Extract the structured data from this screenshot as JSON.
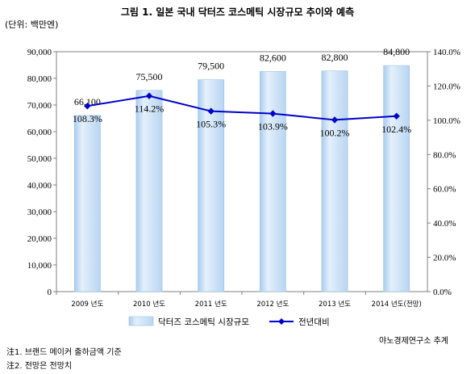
{
  "title": "그림 1. 일본 국내 닥터즈 코스메틱 시장규모 추이와 예측",
  "unit_label": "(단위: 백만엔)",
  "source": "야노경제연구소 추계",
  "notes": [
    "注1.  브랜드 메이커 출하금액 기준",
    "注2.  전망은 전망치"
  ],
  "chart_data": {
    "type": "bar",
    "categories": [
      "2009 년도",
      "2010 년도",
      "2011 년도",
      "2012 년도",
      "2013 년도",
      "2014 년도(전망)"
    ],
    "series": [
      {
        "name": "닥터즈 코스메틱 시장규모",
        "type": "bar",
        "axis": "left",
        "values": [
          66100,
          75500,
          79500,
          82600,
          82800,
          84800
        ],
        "labels": [
          "66,100",
          "75,500",
          "79,500",
          "82,600",
          "82,800",
          "84,800"
        ],
        "color": "#cfe3f7"
      },
      {
        "name": "전년대비",
        "type": "line",
        "axis": "right",
        "values": [
          108.3,
          114.2,
          105.3,
          103.9,
          100.2,
          102.4
        ],
        "labels": [
          "108.3%",
          "114.2%",
          "105.3%",
          "103.9%",
          "100.2%",
          "102.4%"
        ],
        "color": "#0000cc"
      }
    ],
    "left_axis": {
      "min": 0,
      "max": 90000,
      "step": 10000,
      "ticks": [
        "0",
        "10,000",
        "20,000",
        "30,000",
        "40,000",
        "50,000",
        "60,000",
        "70,000",
        "80,000",
        "90,000"
      ]
    },
    "right_axis": {
      "min": 0,
      "max": 140,
      "step": 20,
      "ticks": [
        "0.0%",
        "20.0%",
        "40.0%",
        "60.0%",
        "80.0%",
        "100.0%",
        "120.0%",
        "140.0%"
      ]
    },
    "grid": false,
    "legend_position": "bottom"
  }
}
